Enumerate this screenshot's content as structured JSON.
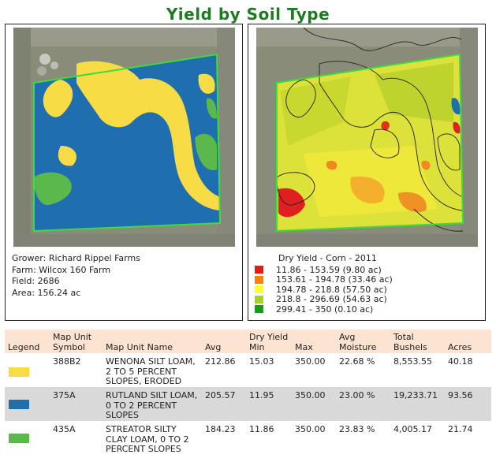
{
  "title": "Yield by Soil Type",
  "colors": {
    "title": "#1e7a23",
    "soil_yellow": "#f7dc45",
    "soil_blue": "#1f6fb0",
    "soil_green": "#5bb84a",
    "field_border": "#3cdc3c"
  },
  "farm_info": {
    "grower": "Grower: Richard Rippel Farms",
    "farm": "Farm: Wilcox 160 Farm",
    "field": "Field: 2686",
    "area": "Area: 156.24 ac"
  },
  "yield_legend": {
    "title": "Dry Yield - Corn - 2011",
    "entries": [
      {
        "label": "11.86 - 153.59 (9.80 ac)",
        "color": "#e41a1c"
      },
      {
        "label": "153.61 - 194.78 (33.46 ac)",
        "color": "#ff7f00"
      },
      {
        "label": "194.78 - 218.8 (57.50 ac)",
        "color": "#ffff33"
      },
      {
        "label": "218.8 - 296.69 (54.63 ac)",
        "color": "#a6d12a"
      },
      {
        "label": "299.41 - 350 (0.10 ac)",
        "color": "#1a9a1a"
      }
    ]
  },
  "table": {
    "headers": {
      "legend": "Legend",
      "map_unit_1": "Map Unit",
      "map_unit_2": "Symbol",
      "map_unit_name": "Map Unit Name",
      "dry_yield": "Dry Yield",
      "avg": "Avg",
      "min": "Min",
      "max": "Max",
      "avg_moisture_1": "Avg",
      "avg_moisture_2": "Moisture",
      "total_bushels_1": "Total",
      "total_bushels_2": "Bushels",
      "acres": "Acres"
    },
    "rows": [
      {
        "color": "#f7dc45",
        "symbol": "388B2",
        "name": "WENONA SILT LOAM, 2 TO 5 PERCENT SLOPES, ERODED",
        "avg": "212.86",
        "min": "15.03",
        "max": "350.00",
        "moisture": "22.68 %",
        "bushels": "8,553.55",
        "acres": "40.18"
      },
      {
        "color": "#1f6fb0",
        "symbol": "375A",
        "name": "RUTLAND SILT LOAM, 0 TO 2 PERCENT SLOPES",
        "avg": "205.57",
        "min": "11.95",
        "max": "350.00",
        "moisture": "23.00 %",
        "bushels": "19,233.71",
        "acres": "93.56"
      },
      {
        "color": "#5bb84a",
        "symbol": "435A",
        "name": "STREATOR SILTY CLAY LOAM, 0 TO 2 PERCENT SLOPES",
        "avg": "184.23",
        "min": "11.86",
        "max": "350.00",
        "moisture": "23.83 %",
        "bushels": "4,005.17",
        "acres": "21.74"
      }
    ]
  }
}
